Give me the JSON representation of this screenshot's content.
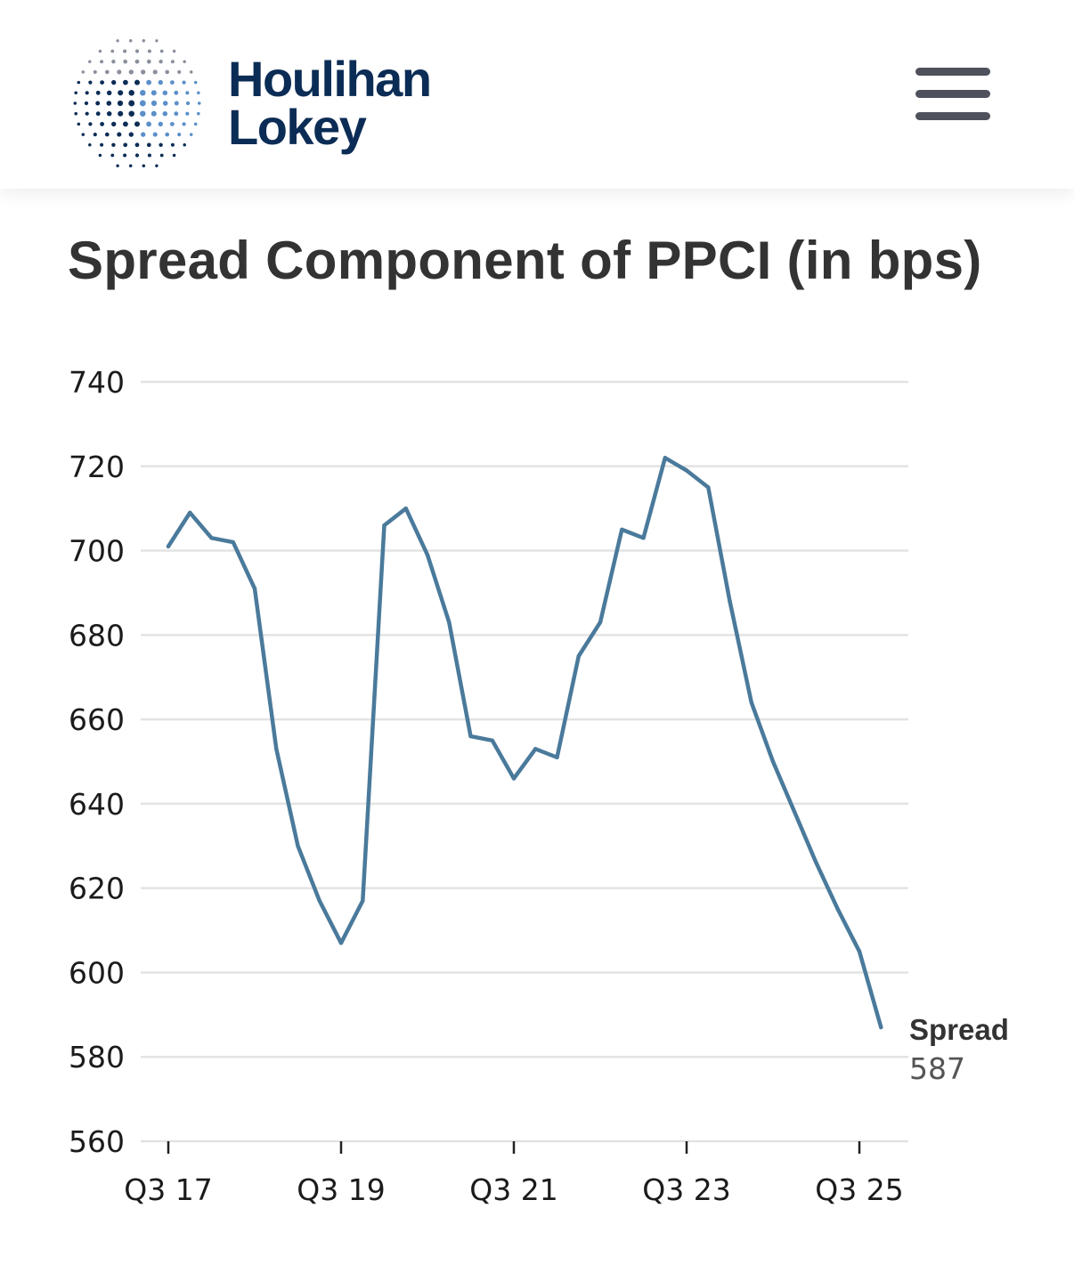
{
  "header": {
    "brand_line1": "Houlihan",
    "brand_line2": "Lokey",
    "logo_icon": "globe-dots-icon",
    "menu_icon": "hamburger-menu-icon",
    "brand_color": "#0b2c55"
  },
  "chart_data": {
    "type": "line",
    "title": "Spread Component of PPCI (in bps)",
    "xlabel": "",
    "ylabel": "",
    "ylim": [
      560,
      740
    ],
    "yticks": [
      740,
      720,
      700,
      680,
      660,
      640,
      620,
      600,
      580,
      560
    ],
    "xtick_labels": [
      "Q3 17",
      "Q3 19",
      "Q3 21",
      "Q3 23",
      "Q3 25"
    ],
    "xtick_index": [
      0,
      8,
      16,
      24,
      32
    ],
    "grid": true,
    "line_color": "#4a7a9b",
    "series": [
      {
        "name": "Spread",
        "last_value_label": "587",
        "values": [
          701,
          709,
          703,
          702,
          691,
          653,
          630,
          617,
          607,
          617,
          706,
          710,
          699,
          683,
          656,
          655,
          646,
          653,
          651,
          675,
          683,
          705,
          703,
          722,
          719,
          715,
          688,
          664,
          650,
          638,
          626,
          615,
          605,
          587
        ]
      }
    ]
  }
}
